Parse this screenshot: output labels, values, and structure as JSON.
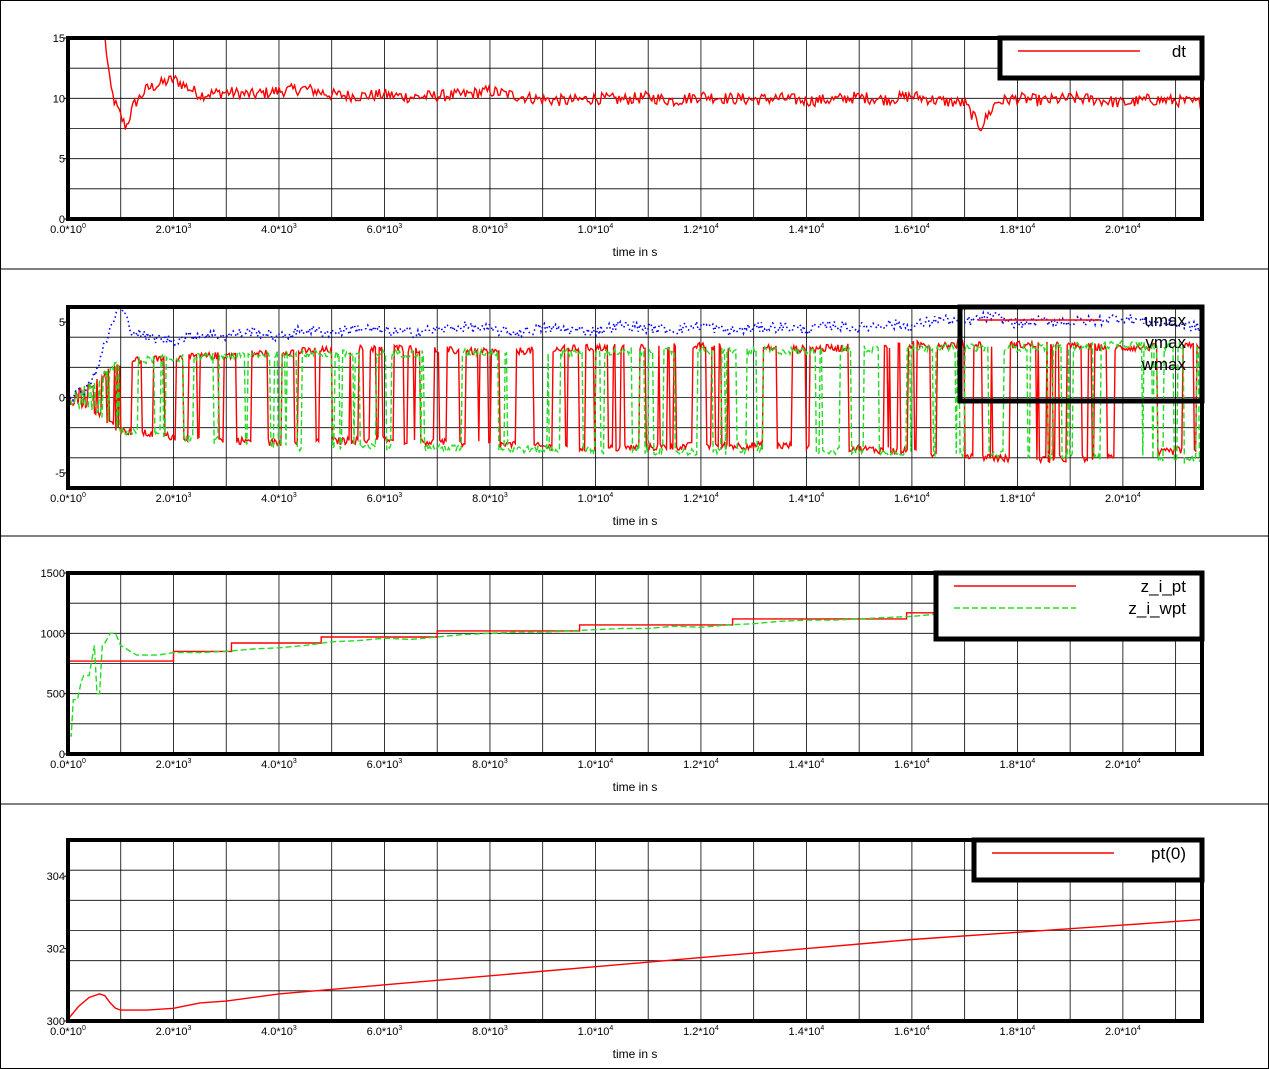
{
  "chart_data": [
    {
      "type": "line",
      "xlabel": "time in s",
      "x_tick_values": [
        0,
        2000,
        4000,
        6000,
        8000,
        10000,
        12000,
        14000,
        16000,
        18000,
        20000
      ],
      "x_tick_labels": [
        [
          "0.0*10",
          "0"
        ],
        [
          "2.0*10",
          "3"
        ],
        [
          "4.0*10",
          "3"
        ],
        [
          "6.0*10",
          "3"
        ],
        [
          "8.0*10",
          "3"
        ],
        [
          "1.0*10",
          "4"
        ],
        [
          "1.2*10",
          "4"
        ],
        [
          "1.4*10",
          "4"
        ],
        [
          "1.6*10",
          "4"
        ],
        [
          "1.8*10",
          "4"
        ],
        [
          "2.0*10",
          "4"
        ]
      ],
      "xlim": [
        0,
        21500
      ],
      "ylim": [
        0,
        15
      ],
      "y_ticks": [
        0,
        5,
        10,
        15
      ],
      "y_tick_labels": [
        "0",
        "5",
        "10",
        "15"
      ],
      "grid": true,
      "legend_position": "top-right",
      "series": [
        {
          "name": "dt",
          "color": "#ff0000",
          "style": "solid",
          "x": [
            700,
            800,
            900,
            1000,
            1100,
            1250,
            1500,
            2000,
            2500,
            3000,
            3500,
            4000,
            4500,
            5000,
            5500,
            6000,
            6500,
            7000,
            7500,
            8000,
            8500,
            9000,
            9500,
            10000,
            10500,
            11000,
            11500,
            12000,
            12500,
            13000,
            13500,
            14000,
            14500,
            15000,
            15500,
            16000,
            16500,
            17000,
            17300,
            17600,
            18000,
            18500,
            19000,
            19500,
            20000,
            20500,
            21000,
            21500
          ],
          "y": [
            15,
            11,
            9.5,
            8.5,
            7.6,
            9.5,
            10.8,
            11.6,
            10.3,
            10.5,
            10.3,
            10.6,
            10.8,
            10.3,
            10.2,
            10.3,
            10.1,
            10.2,
            10.3,
            10.6,
            10.2,
            9.9,
            9.8,
            10.0,
            9.9,
            10.1,
            9.8,
            10.2,
            10.0,
            9.9,
            10.0,
            9.8,
            9.9,
            10.1,
            9.9,
            10.2,
            9.8,
            9.6,
            7.6,
            9.7,
            10.0,
            9.8,
            10.0,
            9.9,
            9.6,
            9.9,
            9.8,
            9.6
          ]
        }
      ]
    },
    {
      "type": "line",
      "xlabel": "time in s",
      "x_tick_values": [
        0,
        2000,
        4000,
        6000,
        8000,
        10000,
        12000,
        14000,
        16000,
        18000,
        20000
      ],
      "x_tick_labels": [
        [
          "0.0*10",
          "0"
        ],
        [
          "2.0*10",
          "3"
        ],
        [
          "4.0*10",
          "3"
        ],
        [
          "6.0*10",
          "3"
        ],
        [
          "8.0*10",
          "3"
        ],
        [
          "1.0*10",
          "4"
        ],
        [
          "1.2*10",
          "4"
        ],
        [
          "1.4*10",
          "4"
        ],
        [
          "1.6*10",
          "4"
        ],
        [
          "1.8*10",
          "4"
        ],
        [
          "2.0*10",
          "4"
        ]
      ],
      "xlim": [
        0,
        21500
      ],
      "ylim": [
        -6,
        6
      ],
      "y_ticks": [
        -5,
        0,
        5
      ],
      "y_tick_labels": [
        "-5",
        "0",
        "5"
      ],
      "grid": true,
      "legend_position": "top-right",
      "series": [
        {
          "name": "umax",
          "color": "#ff0000",
          "style": "solid",
          "envelope_x": [
            0,
            500,
            1000,
            2000,
            4000,
            6000,
            8000,
            10000,
            12000,
            14000,
            16000,
            18000,
            20000,
            21500
          ],
          "envelope_hi": [
            0.2,
            1.0,
            2.4,
            2.6,
            3.0,
            3.3,
            3.0,
            3.3,
            3.4,
            3.2,
            3.5,
            3.5,
            3.3,
            3.4
          ],
          "envelope_lo": [
            -0.2,
            -0.8,
            -2.2,
            -2.6,
            -3.0,
            -2.8,
            -3.1,
            -3.4,
            -3.2,
            -3.2,
            -3.6,
            -4.1,
            -4.0,
            -3.3
          ]
        },
        {
          "name": "vmax",
          "color": "#22dd22",
          "style": "dashed",
          "envelope_x": [
            0,
            500,
            1000,
            2000,
            4000,
            6000,
            8000,
            10000,
            12000,
            14000,
            16000,
            18000,
            20000,
            21500
          ],
          "envelope_hi": [
            0.2,
            1.0,
            2.4,
            2.6,
            2.9,
            2.9,
            3.0,
            3.0,
            3.1,
            3.1,
            3.3,
            3.3,
            3.5,
            3.3
          ],
          "envelope_lo": [
            -0.2,
            -0.8,
            -2.2,
            -2.6,
            -3.3,
            -3.3,
            -3.4,
            -3.5,
            -3.6,
            -3.5,
            -3.6,
            -3.8,
            -4.0,
            -4.1
          ]
        },
        {
          "name": "wmax",
          "color": "#0000ff",
          "style": "dotted",
          "x": [
            0,
            300,
            500,
            700,
            900,
            1000,
            1200,
            1500,
            2000,
            2500,
            3000,
            3500,
            4000,
            4500,
            5000,
            5500,
            6000,
            6500,
            7000,
            7500,
            8000,
            8500,
            9000,
            9500,
            10000,
            10500,
            11000,
            11500,
            12000,
            12500,
            13000,
            13500,
            14000,
            14500,
            15000,
            15500,
            16000,
            16500,
            17000,
            17500,
            18000,
            18500,
            19000,
            19500,
            20000,
            20500,
            21000,
            21500
          ],
          "y": [
            0,
            0.5,
            1.5,
            3.5,
            5.5,
            6.0,
            4.5,
            4.0,
            3.8,
            4.2,
            4.1,
            4.4,
            4.0,
            4.5,
            4.3,
            4.6,
            4.4,
            4.3,
            4.5,
            4.7,
            4.5,
            4.3,
            4.6,
            4.5,
            4.4,
            4.8,
            4.6,
            4.5,
            4.8,
            4.4,
            4.6,
            4.7,
            4.5,
            4.8,
            4.6,
            4.9,
            4.7,
            5.2,
            5.0,
            5.4,
            4.9,
            5.1,
            5.0,
            5.1,
            5.3,
            5.0,
            4.9,
            4.6
          ]
        }
      ]
    },
    {
      "type": "line",
      "xlabel": "time in s",
      "x_tick_values": [
        0,
        2000,
        4000,
        6000,
        8000,
        10000,
        12000,
        14000,
        16000,
        18000,
        20000
      ],
      "x_tick_labels": [
        [
          "0.0*10",
          "0"
        ],
        [
          "2.0*10",
          "3"
        ],
        [
          "4.0*10",
          "3"
        ],
        [
          "6.0*10",
          "3"
        ],
        [
          "8.0*10",
          "3"
        ],
        [
          "1.0*10",
          "4"
        ],
        [
          "1.2*10",
          "4"
        ],
        [
          "1.4*10",
          "4"
        ],
        [
          "1.6*10",
          "4"
        ],
        [
          "1.8*10",
          "4"
        ],
        [
          "2.0*10",
          "4"
        ]
      ],
      "xlim": [
        0,
        21500
      ],
      "ylim": [
        0,
        1500
      ],
      "y_ticks": [
        0,
        500,
        1000,
        1500
      ],
      "y_tick_labels": [
        "0",
        "500",
        "1000",
        "1500"
      ],
      "grid": true,
      "legend_position": "top-right",
      "series": [
        {
          "name": "z_i_pt",
          "color": "#ff0000",
          "style": "solid",
          "x": [
            0,
            2000,
            2000,
            3100,
            3100,
            4800,
            4800,
            7000,
            7000,
            9700,
            9700,
            12600,
            12600,
            15900,
            15900,
            19700,
            19700,
            21500
          ],
          "y": [
            770,
            770,
            850,
            850,
            920,
            920,
            970,
            970,
            1020,
            1020,
            1070,
            1070,
            1120,
            1120,
            1170,
            1170,
            1210,
            1210
          ]
        },
        {
          "name": "z_i_wpt",
          "color": "#22dd22",
          "style": "dashed",
          "x": [
            0,
            60,
            100,
            180,
            250,
            300,
            400,
            500,
            550,
            600,
            650,
            700,
            800,
            900,
            1000,
            1300,
            1700,
            2000,
            2500,
            3000,
            3500,
            4000,
            4500,
            5000,
            5500,
            6000,
            6500,
            7000,
            7500,
            8000,
            8500,
            9000,
            9500,
            10000,
            10500,
            11000,
            11500,
            12000,
            12500,
            13000,
            13500,
            14000,
            14500,
            15000,
            15500,
            16000,
            16500,
            17000,
            17500,
            18000,
            18500,
            19000,
            19500,
            20000,
            20500,
            21000,
            21500
          ],
          "y": [
            150,
            150,
            450,
            450,
            600,
            650,
            650,
            900,
            500,
            500,
            900,
            920,
            1000,
            1000,
            900,
            820,
            820,
            840,
            840,
            850,
            870,
            880,
            900,
            930,
            940,
            960,
            950,
            970,
            990,
            1000,
            1010,
            1010,
            1020,
            1030,
            1040,
            1040,
            1060,
            1050,
            1070,
            1080,
            1100,
            1110,
            1110,
            1120,
            1130,
            1140,
            1160,
            1140,
            1150,
            1160,
            1170,
            1170,
            1180,
            1190,
            1200,
            1200,
            1210
          ]
        }
      ]
    },
    {
      "type": "line",
      "xlabel": "time in s",
      "x_tick_values": [
        0,
        2000,
        4000,
        6000,
        8000,
        10000,
        12000,
        14000,
        16000,
        18000,
        20000
      ],
      "x_tick_labels": [
        [
          "0.0*10",
          "0"
        ],
        [
          "2.0*10",
          "3"
        ],
        [
          "4.0*10",
          "3"
        ],
        [
          "6.0*10",
          "3"
        ],
        [
          "8.0*10",
          "3"
        ],
        [
          "1.0*10",
          "4"
        ],
        [
          "1.2*10",
          "4"
        ],
        [
          "1.4*10",
          "4"
        ],
        [
          "1.6*10",
          "4"
        ],
        [
          "1.8*10",
          "4"
        ],
        [
          "2.0*10",
          "4"
        ]
      ],
      "xlim": [
        0,
        21500
      ],
      "ylim": [
        300,
        305
      ],
      "y_ticks": [
        300,
        302,
        304
      ],
      "y_tick_labels": [
        "300",
        "302",
        "304"
      ],
      "grid": true,
      "legend_position": "top-right",
      "series": [
        {
          "name": "pt(0)",
          "color": "#ff0000",
          "style": "solid",
          "x": [
            0,
            200,
            400,
            600,
            700,
            800,
            900,
            1000,
            1500,
            2000,
            2500,
            3000,
            4000,
            6000,
            8000,
            10000,
            12000,
            14000,
            16000,
            18000,
            20000,
            21500
          ],
          "y": [
            300.05,
            300.4,
            300.65,
            300.75,
            300.7,
            300.5,
            300.35,
            300.3,
            300.3,
            300.35,
            300.5,
            300.55,
            300.75,
            301.0,
            301.25,
            301.5,
            301.75,
            302.0,
            302.25,
            302.45,
            302.65,
            302.8
          ]
        }
      ]
    }
  ]
}
